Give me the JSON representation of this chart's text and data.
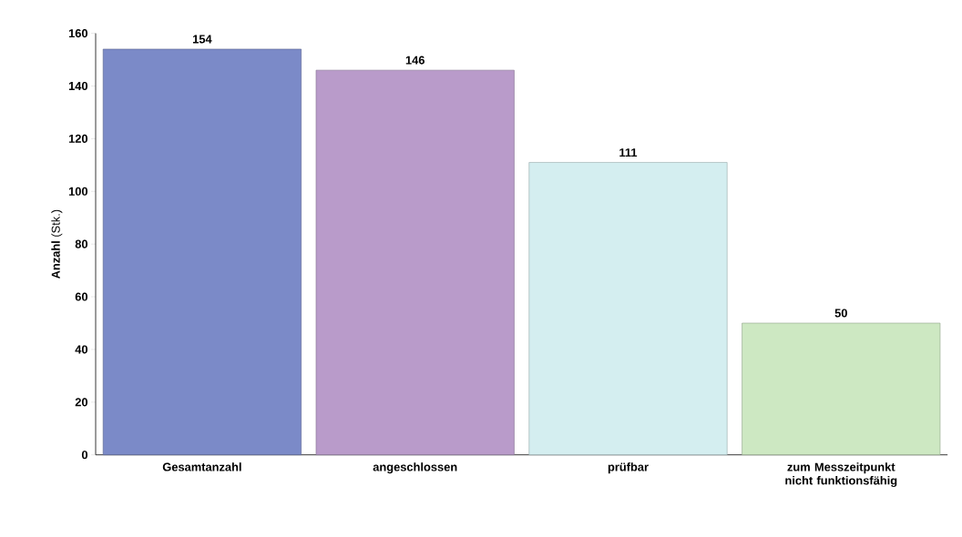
{
  "chart_data": {
    "type": "bar",
    "ylabel": "**Anzahl** (Stk.)",
    "categories": [
      "Gesamtanzahl",
      "angeschlossen",
      "prüfbar",
      "zum Messzeitpunkt nicht funktionsfähig"
    ],
    "values": [
      154,
      146,
      111,
      50
    ],
    "colors": [
      "#7b8ac8",
      "#b99bca",
      "#d4eef0",
      "#cde8c2"
    ],
    "ylim": [
      0,
      160
    ],
    "yticks": [
      0,
      20,
      40,
      60,
      80,
      100,
      120,
      140,
      160
    ],
    "data_labels": true,
    "grid": false
  }
}
